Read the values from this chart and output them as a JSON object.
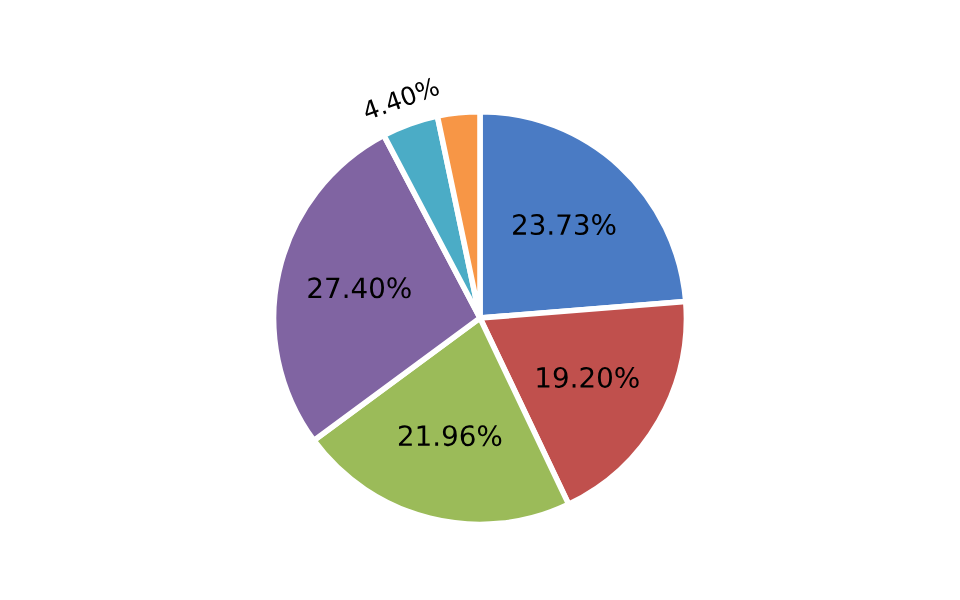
{
  "chart_data": {
    "type": "pie",
    "categories": [
      null,
      null,
      null,
      null,
      null,
      null
    ],
    "values": [
      23.73,
      19.2,
      21.96,
      27.4,
      4.4,
      3.31
    ],
    "value_labels": [
      "23.73%",
      "19.20%",
      "21.96%",
      "27.40%",
      "4.40%",
      null
    ],
    "colors": [
      "#4a7bc4",
      "#c0504d",
      "#9bbb59",
      "#8064a2",
      "#4bacc6",
      "#f79646"
    ],
    "legend": false
  }
}
